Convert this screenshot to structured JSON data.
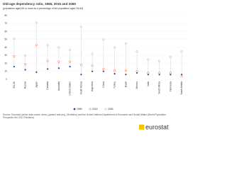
{
  "chart_data": {
    "type": "dot",
    "title": "Old-age dependency ratio, 1965, 2015 and 2065",
    "subtitle": "(population aged 65 or more as a percentage of the population aged 15-64)",
    "categories": [
      "EU-28",
      "Russia",
      "Japan",
      "Canada",
      "Australia",
      "United States",
      "South Korea",
      "Argentina",
      "China",
      "Turkey",
      "Brazil",
      "Mexico",
      "India",
      "South Africa",
      "Indonesia",
      "Saudi Arabia"
    ],
    "series": [
      {
        "name": "1965",
        "color": "#2644a7",
        "values": [
          16,
          12,
          9,
          13,
          14,
          16,
          6,
          10,
          10,
          7,
          6,
          8,
          6,
          6,
          6,
          6
        ]
      },
      {
        "name": "2015",
        "color": "#f06423",
        "values": [
          29,
          19,
          43,
          23,
          22,
          22,
          18,
          17,
          13,
          11,
          11,
          10,
          8,
          8,
          8,
          4
        ]
      },
      {
        "name": "2065",
        "color": "#b0b0b0",
        "values": [
          51,
          30,
          71,
          43,
          40,
          37,
          66,
          32,
          50,
          40,
          45,
          35,
          25,
          23,
          28,
          35
        ]
      }
    ],
    "ylim": [
      0,
      80
    ],
    "yticks": [
      0,
      10,
      20,
      30,
      40,
      50,
      60,
      70,
      80
    ],
    "grid": true,
    "source": "Source: Eurostat (online data codes: demo_pjanind and proj_15ndbims) and the United Nations Department of Economic and Social Affairs (World Population Prospects: the 2017 Revision)",
    "logo": "eurostat"
  }
}
